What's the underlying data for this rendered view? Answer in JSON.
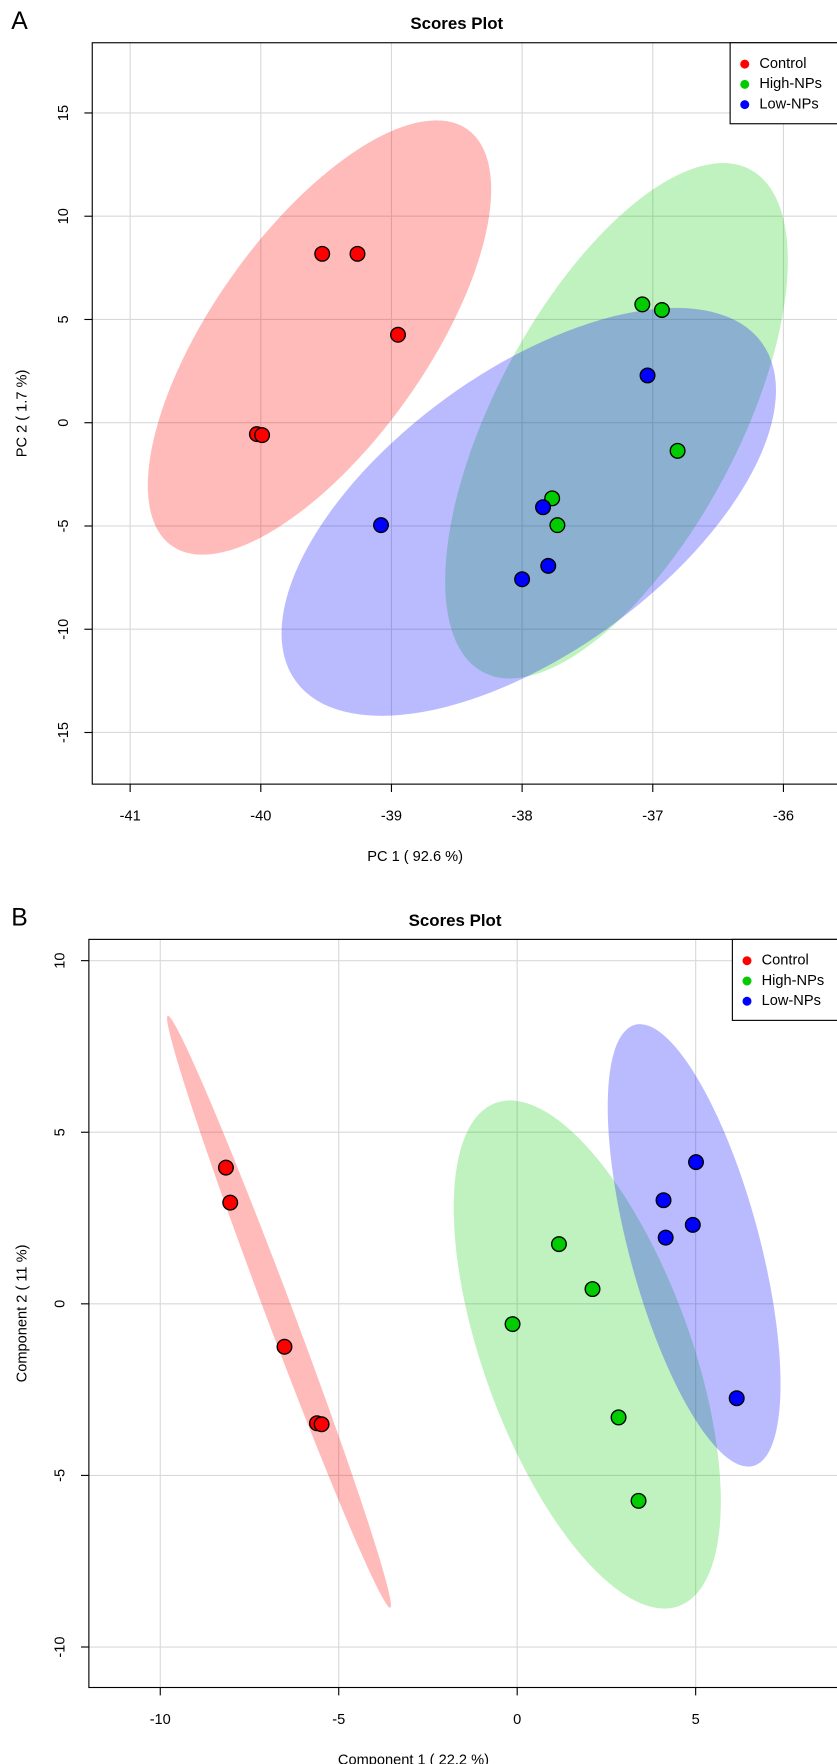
{
  "chart_data": [
    {
      "type": "scatter",
      "panel": "A",
      "title": "Scores Plot",
      "x_label": "PC 1 ( 92.6 %)",
      "y_label": "PC 2 ( 1.7 %)",
      "xlim": [
        -41.29,
        -35.59
      ],
      "ylim": [
        -17.5,
        18.4
      ],
      "xticks": [
        -41,
        -40,
        -39,
        -38,
        -37,
        -36
      ],
      "yticks": [
        -15,
        -10,
        -5,
        0,
        5,
        10,
        15
      ],
      "grid": true,
      "legend": "top-right",
      "series": [
        {
          "name": "Control",
          "color": "#ff0000",
          "x": [
            -39.53,
            -39.26,
            -38.95,
            -40.03,
            -39.99
          ],
          "values": [
            8.18,
            8.18,
            4.26,
            -0.55,
            -0.6
          ]
        },
        {
          "name": "High-NPs",
          "color": "#00cc00",
          "x": [
            -37.08,
            -36.93,
            -36.81,
            -37.77,
            -37.73
          ],
          "values": [
            5.73,
            5.46,
            -1.36,
            -3.66,
            -4.96
          ]
        },
        {
          "name": "Low-NPs",
          "color": "#0000ff",
          "x": [
            -37.04,
            -39.08,
            -37.84,
            -37.8,
            -38.0
          ],
          "values": [
            2.29,
            -4.96,
            -4.09,
            -6.93,
            -7.58
          ]
        }
      ]
    },
    {
      "type": "scatter",
      "panel": "B",
      "title": "Scores Plot",
      "x_label": "Component 1 ( 22.2 %)",
      "y_label": "Component 2 ( 11 %)",
      "xlim": [
        -12.0,
        8.96
      ],
      "ylim": [
        -11.18,
        10.62
      ],
      "xticks": [
        -10,
        -5,
        0,
        5
      ],
      "yticks": [
        -10,
        -5,
        0,
        5,
        10
      ],
      "grid": true,
      "legend": "top-right",
      "series": [
        {
          "name": "Control",
          "color": "#ff0000",
          "x": [
            -8.16,
            -8.04,
            -6.52,
            -5.61,
            -5.48
          ],
          "values": [
            3.97,
            2.95,
            -1.25,
            -3.48,
            -3.51
          ]
        },
        {
          "name": "High-NPs",
          "color": "#00cc00",
          "x": [
            1.17,
            2.11,
            -0.13,
            2.84,
            3.4
          ],
          "values": [
            1.74,
            0.43,
            -0.59,
            -3.31,
            -5.74
          ]
        },
        {
          "name": "Low-NPs",
          "color": "#0000ff",
          "x": [
            5.01,
            4.1,
            4.16,
            4.92,
            6.15
          ],
          "values": [
            4.13,
            3.02,
            1.93,
            2.3,
            -2.75
          ]
        }
      ]
    }
  ]
}
